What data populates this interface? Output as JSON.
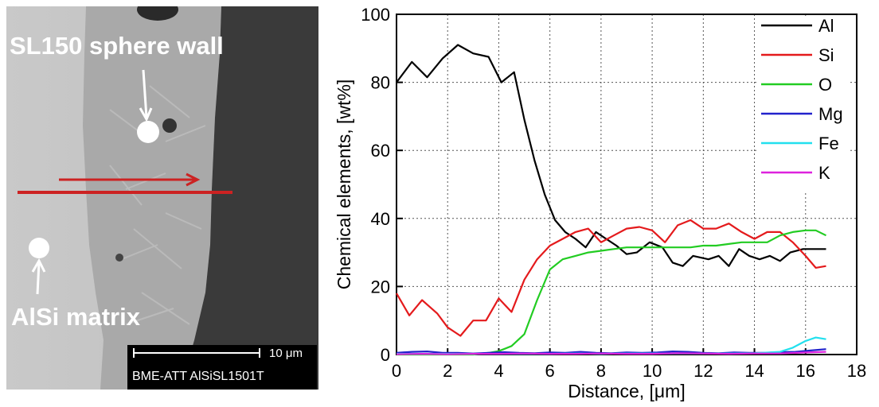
{
  "micrograph": {
    "top_label": "SL150 sphere wall",
    "bottom_label": "AlSi matrix",
    "scale_bar_label": "10 μm",
    "info_text": "BME-ATT  AlSiSL1501T"
  },
  "colors": {
    "Al": "#000000",
    "Si": "#e41a1c",
    "O": "#22cc22",
    "Mg": "#2222cc",
    "Fe": "#22e0ee",
    "K": "#dd22dd",
    "arrow": "#cc2222"
  },
  "chart_data": {
    "type": "line",
    "title": "",
    "xlabel": "Distance, [μm]",
    "ylabel": "Chemical elements, [wt%]",
    "xlim": [
      0,
      18
    ],
    "ylim": [
      0,
      100
    ],
    "xticks": [
      0,
      2,
      4,
      6,
      8,
      10,
      12,
      14,
      16,
      18
    ],
    "yticks": [
      0,
      20,
      40,
      60,
      80,
      100
    ],
    "grid": true,
    "legend_position": "top-right",
    "series": [
      {
        "name": "Al",
        "color": "#000000",
        "x": [
          0,
          0.6,
          1.2,
          1.8,
          2.4,
          3.0,
          3.6,
          4.1,
          4.6,
          5.0,
          5.4,
          5.8,
          6.2,
          6.6,
          7.0,
          7.4,
          7.8,
          8.2,
          8.6,
          9.0,
          9.4,
          9.9,
          10.4,
          10.8,
          11.2,
          11.6,
          12.2,
          12.6,
          13.0,
          13.4,
          13.8,
          14.2,
          14.6,
          15.0,
          15.4,
          15.9,
          16.4,
          16.8
        ],
        "y": [
          80,
          86,
          81.5,
          87,
          91,
          88.5,
          87.5,
          80,
          83,
          69,
          57,
          47,
          39.5,
          36,
          34,
          31.5,
          36,
          34,
          32,
          29.5,
          30,
          33,
          31.5,
          27,
          26,
          29,
          28,
          29,
          26,
          31,
          29,
          28,
          29,
          27.5,
          30,
          31,
          31,
          31
        ]
      },
      {
        "name": "Si",
        "color": "#e41a1c",
        "x": [
          0,
          0.5,
          1.0,
          1.6,
          2.0,
          2.5,
          3.0,
          3.5,
          4.0,
          4.5,
          5.0,
          5.5,
          6.0,
          6.5,
          7.0,
          7.5,
          8.0,
          8.5,
          9.0,
          9.5,
          10.0,
          10.5,
          11.0,
          11.5,
          12.0,
          12.5,
          13.0,
          13.5,
          14.0,
          14.5,
          15.0,
          15.5,
          16.0,
          16.4,
          16.8
        ],
        "y": [
          18,
          11.5,
          16,
          12,
          8,
          5.5,
          10,
          10,
          16.5,
          12.5,
          22,
          28,
          32,
          34,
          36,
          37,
          33,
          35,
          37,
          37.5,
          36.5,
          33,
          38,
          39.5,
          37,
          37,
          38.5,
          36,
          34,
          36,
          36,
          33,
          29,
          25.5,
          26
        ]
      },
      {
        "name": "O",
        "color": "#22cc22",
        "x": [
          0,
          1,
          2,
          3,
          3.6,
          4.0,
          4.5,
          5.0,
          5.5,
          6.0,
          6.5,
          7.0,
          7.5,
          8.0,
          8.5,
          9.0,
          9.5,
          10.0,
          10.5,
          11.0,
          11.5,
          12.0,
          12.5,
          13.0,
          13.5,
          14.0,
          14.5,
          15.0,
          15.5,
          16.0,
          16.4,
          16.8
        ],
        "y": [
          0,
          0,
          0,
          0,
          0.5,
          1,
          2.5,
          6,
          16,
          25,
          28,
          29,
          30,
          30.5,
          31,
          31.5,
          31.5,
          31.5,
          31.5,
          31.5,
          31.5,
          32,
          32,
          32.5,
          33,
          33,
          33,
          35,
          36,
          36.5,
          36.5,
          35
        ]
      },
      {
        "name": "Mg",
        "color": "#2222cc",
        "x": [
          0,
          0.6,
          1.2,
          1.8,
          2.4,
          3.0,
          3.6,
          4.2,
          4.8,
          5.4,
          6.0,
          6.6,
          7.2,
          7.8,
          8.4,
          9.0,
          9.6,
          10.2,
          10.8,
          11.4,
          12.0,
          12.6,
          13.2,
          13.8,
          14.4,
          15.0,
          15.6,
          16.2,
          16.8
        ],
        "y": [
          0.5,
          0.8,
          0.9,
          0.5,
          0.5,
          0.3,
          0.5,
          0.7,
          0.5,
          0.4,
          0.6,
          0.5,
          0.8,
          0.5,
          0.4,
          0.6,
          0.5,
          0.6,
          0.9,
          0.8,
          0.5,
          0.4,
          0.6,
          0.5,
          0.5,
          0.7,
          0.8,
          1.2,
          1.6
        ]
      },
      {
        "name": "Fe",
        "color": "#22e0ee",
        "x": [
          0,
          1,
          2,
          3,
          4,
          5,
          6,
          7,
          8,
          9,
          10,
          11,
          12,
          13,
          14,
          15,
          15.5,
          16.0,
          16.4,
          16.8
        ],
        "y": [
          0.2,
          0.2,
          0.2,
          0.2,
          0.2,
          0.2,
          0.2,
          0.3,
          0.2,
          0.3,
          0.3,
          0.3,
          0.3,
          0.3,
          0.4,
          0.8,
          2,
          4,
          5,
          4.5
        ]
      },
      {
        "name": "K",
        "color": "#dd22dd",
        "x": [
          0,
          1,
          2,
          3,
          4,
          5,
          6,
          7,
          8,
          9,
          10,
          11,
          12,
          13,
          14,
          15,
          16,
          16.8
        ],
        "y": [
          0.1,
          0.2,
          0.1,
          0.2,
          0.2,
          0.3,
          0.2,
          0.2,
          0.3,
          0.2,
          0.2,
          0.4,
          0.3,
          0.2,
          0.3,
          0.3,
          0.6,
          0.8
        ]
      }
    ]
  }
}
